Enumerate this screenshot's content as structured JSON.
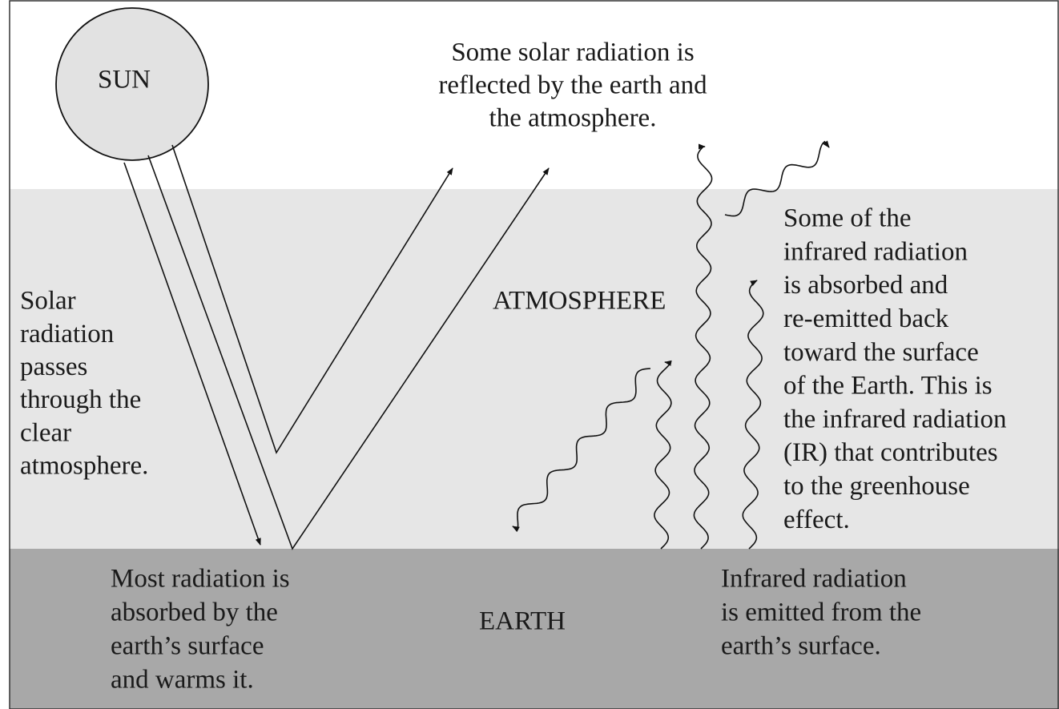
{
  "labels": {
    "sun": "SUN",
    "atmosphere": "ATMOSPHERE",
    "earth": "EARTH"
  },
  "annotations": {
    "reflected": [
      "Some solar radiation is",
      "reflected by the earth and",
      "the atmosphere."
    ],
    "solar_passes": [
      "Solar",
      "radiation",
      "passes",
      "through the",
      "clear",
      "atmosphere."
    ],
    "greenhouse": [
      "Some of the",
      "infrared radiation",
      "is absorbed and",
      "re-emitted back",
      "toward the surface",
      "of the Earth. This is",
      "the infrared radiation",
      "(IR) that contributes",
      "to the greenhouse",
      "effect."
    ],
    "absorbed": [
      "Most radiation is",
      "absorbed by the",
      "earth’s surface",
      "and warms it."
    ],
    "infrared_emitted": [
      "Infrared radiation",
      "is emitted from the",
      "earth’s surface."
    ]
  }
}
